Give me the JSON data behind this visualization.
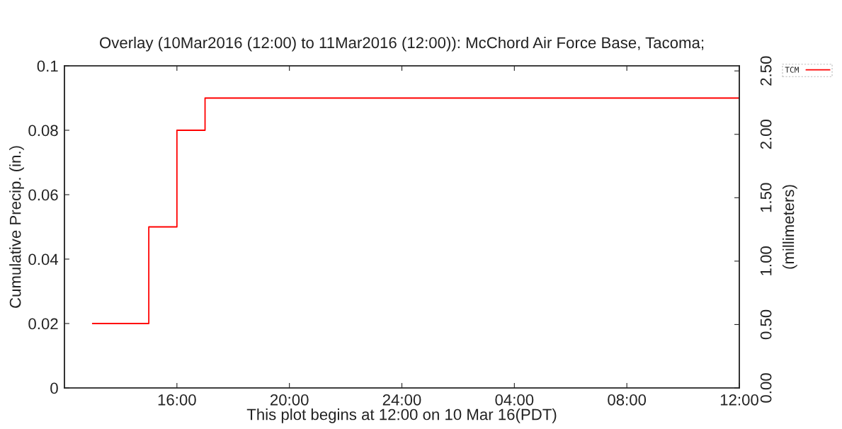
{
  "chart_data": {
    "type": "step",
    "title": "Overlay (10Mar2016 (12:00) to 11Mar2016 (12:00)): McChord Air Force Base, Tacoma;",
    "xlabel": "This plot begins at 12:00 on 10 Mar 16(PDT)",
    "ylabel": "Cumulative Precip. (in.)",
    "y2label": "(millimeters)",
    "series": [
      {
        "name": "TCM",
        "color": "#ff0000",
        "x": [
          "2016-03-10T13:00",
          "2016-03-10T15:00",
          "2016-03-10T16:00",
          "2016-03-10T17:00",
          "2016-03-11T12:00"
        ],
        "values": [
          0.02,
          0.05,
          0.08,
          0.09,
          0.09
        ]
      }
    ],
    "xlim": [
      "2016-03-10T12:00",
      "2016-03-11T12:00"
    ],
    "xticks": [
      {
        "value": "2016-03-10T16:00",
        "label": "16:00"
      },
      {
        "value": "2016-03-10T20:00",
        "label": "20:00"
      },
      {
        "value": "2016-03-11T00:00",
        "label": "24:00"
      },
      {
        "value": "2016-03-11T04:00",
        "label": "04:00"
      },
      {
        "value": "2016-03-11T08:00",
        "label": "08:00"
      },
      {
        "value": "2016-03-11T12:00",
        "label": "12:00"
      }
    ],
    "ylim": [
      0,
      0.1
    ],
    "yticks": [
      0,
      0.02,
      0.04,
      0.06,
      0.08,
      0.1
    ],
    "y2lim": [
      0,
      2.54
    ],
    "y2ticks": [
      {
        "value": 0,
        "label": "0.00"
      },
      {
        "value": 0.5,
        "label": "0.50"
      },
      {
        "value": 1,
        "label": "1.00"
      },
      {
        "value": 1.5,
        "label": "1.50"
      },
      {
        "value": 2,
        "label": "2.00"
      },
      {
        "value": 2.5,
        "label": "2.50"
      }
    ],
    "legend": "top right",
    "line_style": "solid"
  }
}
